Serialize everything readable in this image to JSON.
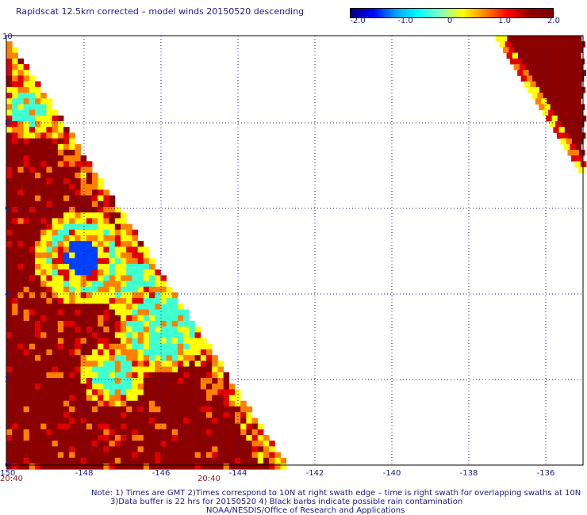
{
  "title": "Rapidscat 12.5km corrected – model winds 20150520 descending",
  "colorbar": {
    "ticks": [
      "-2.0",
      "-1.0",
      "0",
      "1.0",
      "2.0"
    ],
    "min": -2.0,
    "max": 2.0,
    "colors": [
      "#0000ff",
      "#00ffff",
      "#ffff00",
      "#ff0000",
      "#8b0000"
    ]
  },
  "axes": {
    "x_ticks": [
      "-150",
      "-148",
      "-146",
      "-144",
      "-142",
      "-140",
      "-138",
      "-136"
    ],
    "y_ticks": [
      "0",
      "2",
      "4",
      "6",
      "8",
      "10"
    ],
    "xlim": [
      -150,
      -135
    ],
    "ylim": [
      0,
      10
    ],
    "grid": true
  },
  "time_labels": [
    "20:40",
    "20:40"
  ],
  "notes": [
    "Note: 1) Times are GMT 2)Times correspond to 10N at right swath edge – time is right swath for overlapping swaths at 10N",
    "3)Data buffer is 22 hrs for 20150520 4) Black barbs indicate possible rain contamination",
    "NOAA/NESDIS/Office of Research and Applications"
  ],
  "colors": {
    "dark_red": "#8b0000",
    "red": "#e00000",
    "orange": "#ff8000",
    "yellow": "#ffff00",
    "cyan": "#40ffd0",
    "blue": "#0040ff",
    "text_blue": "#1a1a8a",
    "time_red": "#8b1a1a"
  }
}
